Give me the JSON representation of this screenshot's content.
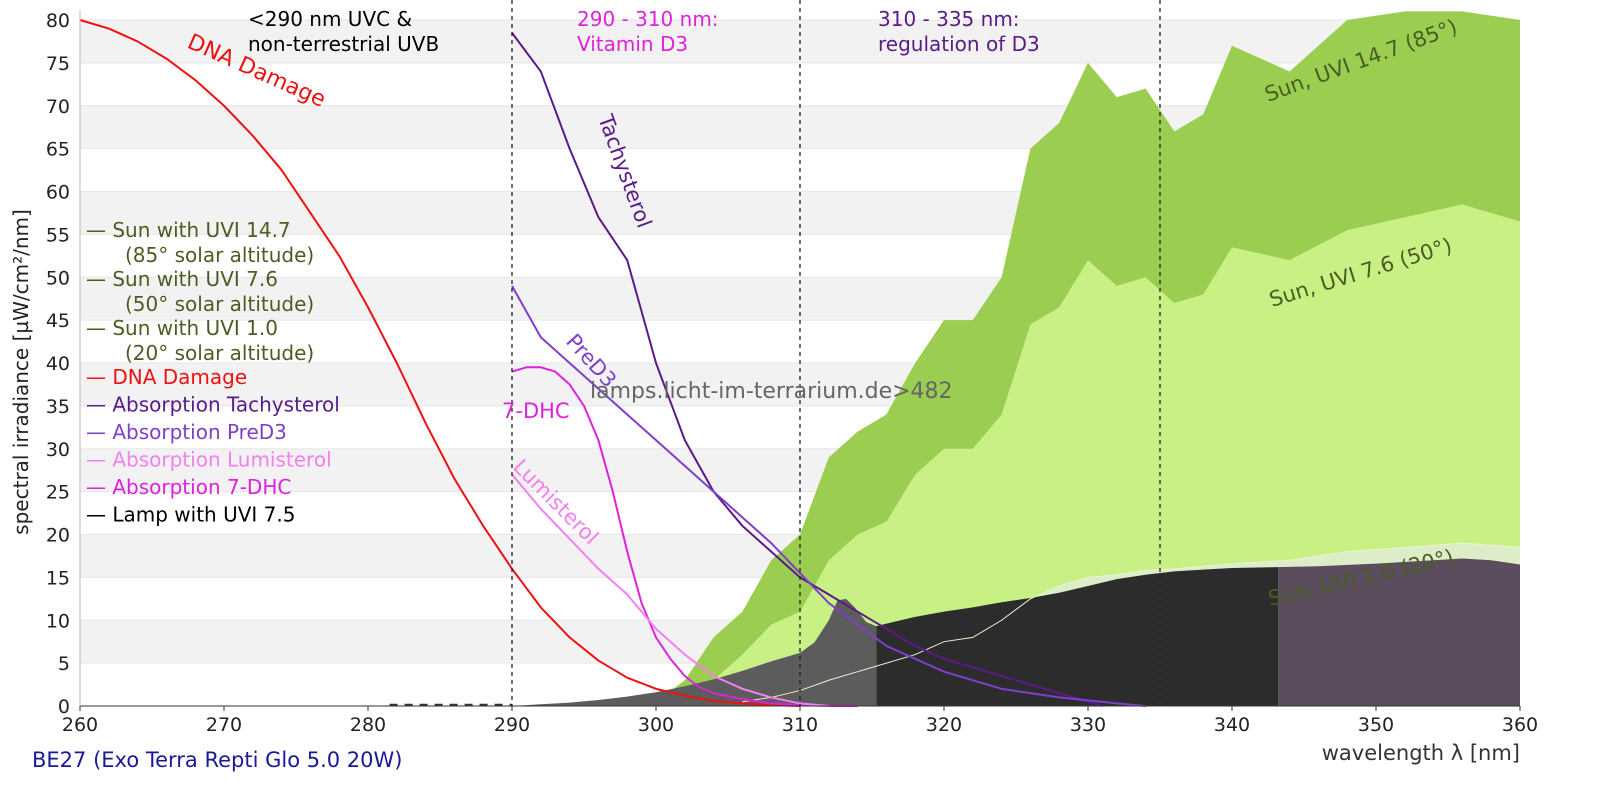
{
  "chart_data": {
    "type": "area",
    "xlabel": "wavelength λ [nm]",
    "ylabel": "spectral irradiance [µW/cm²/nm]",
    "xlim": [
      260,
      360
    ],
    "ylim": [
      0,
      80
    ],
    "x_ticks": [
      "260",
      "270",
      "280",
      "290",
      "300",
      "310",
      "320",
      "330",
      "340",
      "350",
      "360"
    ],
    "y_ticks": [
      "0",
      "5",
      "10",
      "15",
      "20",
      "25",
      "30",
      "35",
      "40",
      "45",
      "50",
      "55",
      "60",
      "65",
      "70",
      "75",
      "80"
    ],
    "grid": "alternating horizontal bands",
    "footer": "BE27 (Exo Terra Repti Glo 5.0 20W)",
    "watermark": "lamps.licht-im-terrarium.de>482",
    "region_labels": [
      {
        "lines": [
          "<290 nm UVC &",
          "non-terrestrial UVB"
        ],
        "color": "#000000"
      },
      {
        "lines": [
          "290 - 310 nm:",
          "Vitamin D3"
        ],
        "color": "#dd22dd"
      },
      {
        "lines": [
          "310 - 335 nm:",
          "regulation of D3"
        ],
        "color": "#5a1a8a"
      }
    ],
    "dividers_nm": [
      290,
      310,
      335
    ],
    "curve_labels": {
      "dna": "DNA Damage",
      "tachysterol": "Tachysterol",
      "pred3": "PreD3",
      "dhc": "7-DHC",
      "lumisterol": "Lumisterol",
      "sun147": "Sun, UVI 14.7 (85°)",
      "sun76": "Sun, UVI 7.6 (50°)",
      "sun10": "Sun, UVI 1.0 (20°)"
    },
    "legend": [
      {
        "text": "— Sun with UVI 14.7",
        "text2": "(85° solar altitude)",
        "color": "#4a5e23"
      },
      {
        "text": "— Sun with UVI 7.6",
        "text2": "(50° solar altitude)",
        "color": "#4a5e23"
      },
      {
        "text": "— Sun with UVI 1.0",
        "text2": "(20° solar altitude)",
        "color": "#4a5e23"
      },
      {
        "text": "— DNA Damage",
        "color": "#ee1111"
      },
      {
        "text": "— Absorption Tachysterol",
        "color": "#5a1a8a"
      },
      {
        "text": "— Absorption PreD3",
        "color": "#7f3fc9"
      },
      {
        "text": "— Absorption Lumisterol",
        "color": "#f57ff0"
      },
      {
        "text": "— Absorption 7-DHC",
        "color": "#dd22dd"
      },
      {
        "text": "— Lamp with UVI 7.5",
        "color": "#000000"
      }
    ],
    "series": [
      {
        "name": "Sun with UVI 14.7",
        "color": "#9acd50",
        "x": [
          300,
          302,
          304,
          306,
          308,
          310,
          312,
          314,
          316,
          318,
          320,
          322,
          324,
          326,
          328,
          330,
          332,
          334,
          336,
          338,
          340,
          344,
          348,
          352,
          356,
          360
        ],
        "y": [
          0.5,
          3,
          8,
          11,
          17,
          20,
          29,
          32,
          34,
          40,
          45,
          45,
          50,
          65,
          68,
          75,
          71,
          72,
          67,
          69,
          77,
          74,
          80,
          83,
          82,
          80
        ]
      },
      {
        "name": "Sun with UVI 7.6",
        "color": "#c8f084",
        "x": [
          302,
          304,
          306,
          308,
          310,
          312,
          314,
          316,
          318,
          320,
          322,
          324,
          326,
          328,
          330,
          332,
          334,
          336,
          338,
          340,
          344,
          348,
          352,
          356,
          360
        ],
        "y": [
          0.3,
          3,
          6,
          9.5,
          11,
          17,
          20,
          21.5,
          27,
          30,
          30,
          34,
          44.5,
          46.5,
          52,
          49,
          50,
          47,
          48,
          53.5,
          52,
          55.5,
          57,
          58.5,
          56.5
        ]
      },
      {
        "name": "Sun with UVI 1.0",
        "color": "#dcedc8",
        "x": [
          306,
          308,
          310,
          312,
          314,
          316,
          318,
          320,
          322,
          324,
          326,
          328,
          330,
          332,
          334,
          336,
          338,
          340,
          344,
          348,
          352,
          356,
          360
        ],
        "y": [
          0.5,
          1,
          1.8,
          3,
          4,
          5,
          6,
          7.5,
          8,
          10,
          12.5,
          14,
          15,
          15.3,
          15.8,
          16,
          16.3,
          16.6,
          17,
          18,
          18.5,
          19,
          18.5
        ]
      },
      {
        "name": "Lamp with UVI 7.5",
        "color": "#333333",
        "x": [
          290,
          292,
          294,
          296,
          298,
          300,
          302,
          304,
          306,
          308,
          310,
          311,
          312,
          312.6,
          313.2,
          313.8,
          314.6,
          315.3,
          316,
          318,
          320,
          322,
          324,
          326,
          328,
          330,
          332,
          334,
          336,
          338,
          340,
          343.2,
          346,
          350,
          354,
          356,
          358,
          360
        ],
        "y": [
          0,
          0.2,
          0.4,
          0.7,
          1.1,
          1.6,
          2.3,
          3.1,
          4.1,
          5.2,
          6.2,
          7.4,
          10,
          12.3,
          12.5,
          11.5,
          9.8,
          9.3,
          9.6,
          10.4,
          11,
          11.5,
          12.1,
          12.6,
          13.2,
          14,
          14.8,
          15.3,
          15.7,
          15.9,
          16.1,
          16.2,
          16.3,
          16.6,
          17,
          17.2,
          17,
          16.5
        ]
      },
      {
        "name": "DNA Damage",
        "color": "#ee1111",
        "x": [
          260,
          262,
          264,
          266,
          268,
          270,
          272,
          274,
          276,
          278,
          280,
          282,
          284,
          286,
          288,
          290,
          292,
          294,
          296,
          298,
          300,
          302,
          304,
          306,
          308,
          310
        ],
        "y": [
          80,
          79,
          77.5,
          75.5,
          73,
          70,
          66.5,
          62.5,
          57.5,
          52.5,
          46.5,
          40,
          33,
          26.5,
          21,
          16,
          11.5,
          8,
          5.3,
          3.3,
          2,
          1.2,
          0.6,
          0.3,
          0.1,
          0
        ]
      },
      {
        "name": "Absorption Tachysterol",
        "color": "#5a1a8a",
        "x": [
          290,
          292,
          294,
          296,
          298,
          300,
          302,
          304,
          306,
          308,
          310,
          312,
          314,
          316,
          318,
          320,
          324,
          328,
          331
        ],
        "y": [
          78.5,
          74,
          65,
          57,
          52,
          40,
          31,
          25,
          21,
          18,
          15,
          13,
          11,
          9,
          7,
          5.5,
          3.5,
          1.5,
          0
        ]
      },
      {
        "name": "Absorption PreD3",
        "color": "#7f3fc9",
        "x": [
          290,
          292,
          294,
          296,
          298,
          300,
          302,
          304,
          306,
          308,
          310,
          312,
          316,
          320,
          324,
          328,
          332,
          334
        ],
        "y": [
          49,
          43,
          40,
          37,
          34,
          31,
          28,
          25,
          22,
          19,
          15.5,
          12,
          7,
          4,
          2,
          1,
          0.3,
          0
        ]
      },
      {
        "name": "Absorption 7-DHC",
        "color": "#dd22dd",
        "x": [
          290,
          291,
          292,
          293,
          294,
          295,
          296,
          297,
          298,
          299,
          300,
          301,
          302,
          303,
          304,
          306,
          308,
          310,
          312,
          314
        ],
        "y": [
          39,
          39.5,
          39.5,
          39,
          37.5,
          35,
          31,
          25,
          18,
          12,
          8,
          5.5,
          3.5,
          2.2,
          1.5,
          0.8,
          0.3,
          0.1,
          0,
          0
        ]
      },
      {
        "name": "Absorption Lumisterol",
        "color": "#f57ff0",
        "x": [
          290,
          292,
          294,
          296,
          298,
          300,
          302,
          304,
          306,
          308,
          310,
          312
        ],
        "y": [
          27,
          23,
          19.5,
          16,
          13,
          9,
          6,
          3.5,
          2,
          1,
          0.3,
          0
        ]
      }
    ]
  }
}
